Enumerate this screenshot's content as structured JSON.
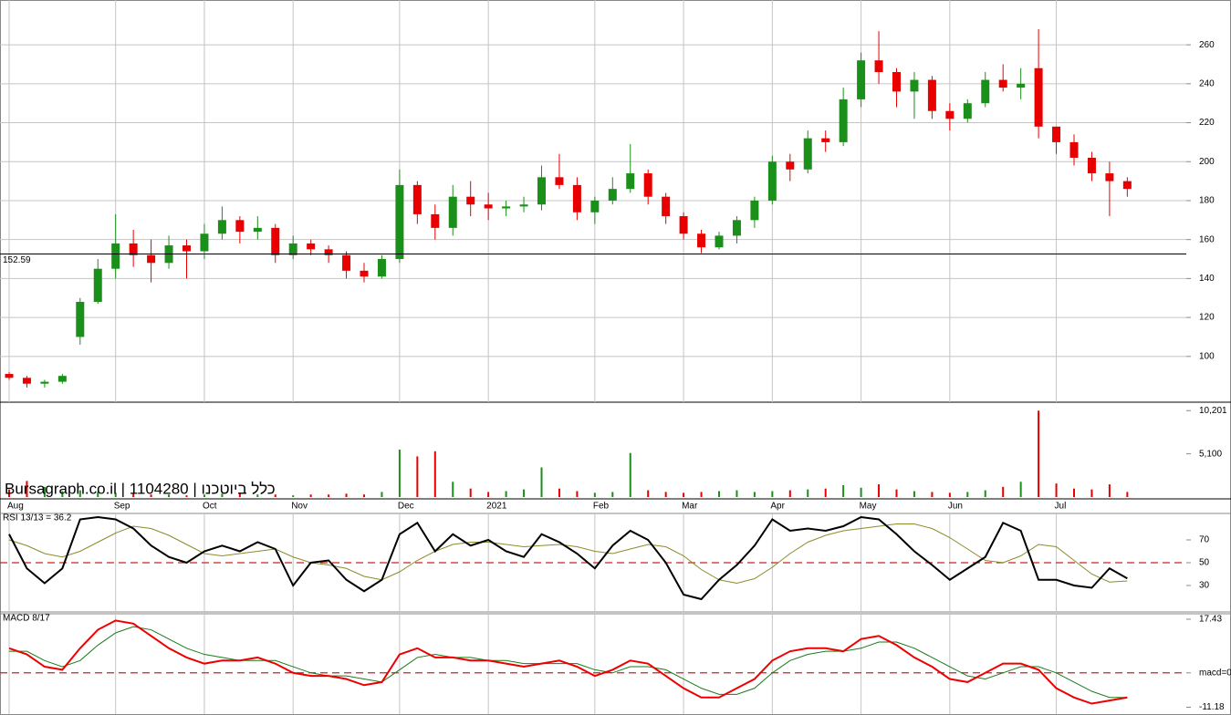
{
  "watermark": "Bursagraph.co.il | 1104280 | כלל ביוטכנו",
  "chart_data": [
    {
      "type": "candlestick",
      "categories": [
        "Aug",
        null,
        null,
        null,
        null,
        null,
        "Sep",
        null,
        null,
        null,
        null,
        "Oct",
        null,
        null,
        null,
        null,
        "Nov",
        null,
        null,
        null,
        null,
        null,
        "Dec",
        null,
        null,
        null,
        null,
        "2021",
        null,
        null,
        null,
        null,
        null,
        "Feb",
        null,
        null,
        null,
        null,
        "Mar",
        null,
        null,
        null,
        null,
        "Apr",
        null,
        null,
        null,
        null,
        "May",
        null,
        null,
        null,
        null,
        "Jun",
        null,
        null,
        null,
        null,
        null,
        "Jul",
        null,
        null,
        null,
        null
      ],
      "open": [
        91,
        89,
        86,
        87,
        110,
        128,
        145,
        158,
        152,
        148,
        157,
        154,
        163,
        170,
        164,
        166,
        152,
        158,
        155,
        152,
        144,
        141,
        150,
        188,
        173,
        166,
        182,
        178,
        176,
        177,
        178,
        192,
        188,
        174,
        180,
        186,
        194,
        182,
        172,
        163,
        156,
        162,
        170,
        180,
        200,
        196,
        212,
        210,
        232,
        252,
        246,
        236,
        242,
        226,
        222,
        230,
        242,
        238,
        248,
        218,
        210,
        202,
        194,
        190
      ],
      "high": [
        92,
        90,
        88,
        91,
        130,
        150,
        173,
        165,
        160,
        162,
        160,
        168,
        177,
        172,
        172,
        168,
        162,
        160,
        157,
        154,
        148,
        152,
        196,
        190,
        178,
        188,
        190,
        184,
        180,
        182,
        198,
        204,
        192,
        182,
        192,
        209,
        196,
        184,
        174,
        165,
        164,
        172,
        182,
        203,
        204,
        216,
        216,
        238,
        256,
        267,
        248,
        246,
        244,
        230,
        232,
        246,
        250,
        248,
        268,
        218,
        214,
        205,
        200,
        192
      ],
      "low": [
        88,
        84,
        84,
        86,
        106,
        127,
        140,
        146,
        138,
        145,
        140,
        150,
        160,
        158,
        160,
        148,
        150,
        152,
        148,
        140,
        138,
        140,
        148,
        168,
        160,
        162,
        172,
        170,
        172,
        174,
        175,
        186,
        170,
        168,
        178,
        184,
        178,
        168,
        160,
        153,
        155,
        158,
        166,
        178,
        190,
        194,
        205,
        208,
        228,
        240,
        228,
        222,
        222,
        216,
        220,
        228,
        236,
        232,
        212,
        204,
        198,
        190,
        172,
        182
      ],
      "close": [
        89,
        86,
        87,
        90,
        128,
        145,
        158,
        152,
        148,
        157,
        154,
        163,
        170,
        164,
        166,
        152,
        158,
        155,
        152,
        144,
        141,
        150,
        188,
        173,
        166,
        182,
        178,
        176,
        177,
        178,
        192,
        188,
        174,
        180,
        186,
        194,
        182,
        172,
        163,
        156,
        162,
        170,
        180,
        200,
        196,
        212,
        210,
        232,
        252,
        246,
        236,
        242,
        226,
        222,
        230,
        242,
        238,
        240,
        218,
        210,
        202,
        194,
        190,
        186
      ],
      "up_color": "#1a8f1a",
      "down_color": "#e80000",
      "ylim": [
        76.5,
        283
      ],
      "yticks": [
        100,
        120,
        140,
        160,
        180,
        200,
        220,
        240,
        260
      ],
      "grid": true,
      "hline": 152.59
    },
    {
      "type": "bar",
      "values": [
        900,
        1900,
        1200,
        700,
        800,
        600,
        500,
        400,
        300,
        300,
        200,
        300,
        400,
        500,
        300,
        300,
        200,
        300,
        300,
        400,
        300,
        600,
        5600,
        4800,
        5400,
        1800,
        1000,
        600,
        700,
        900,
        3500,
        1000,
        700,
        500,
        600,
        5200,
        800,
        600,
        500,
        600,
        700,
        800,
        600,
        700,
        800,
        900,
        1000,
        1400,
        1100,
        1500,
        900,
        700,
        600,
        500,
        600,
        800,
        1200,
        1800,
        10201,
        1600,
        1000,
        900,
        1500,
        600
      ],
      "ylim": [
        0,
        11200
      ],
      "yticks": [
        {
          "value": 10201,
          "label": "10,201"
        },
        {
          "value": 5100,
          "label": "5,100"
        }
      ]
    },
    {
      "type": "line",
      "title": "RSI 13/13 = 36.2",
      "series": [
        {
          "color": "#000000",
          "values": [
            75,
            45,
            32,
            45,
            88,
            90,
            88,
            80,
            65,
            55,
            50,
            60,
            65,
            60,
            68,
            62,
            30,
            50,
            52,
            35,
            25,
            35,
            75,
            85,
            60,
            75,
            65,
            70,
            60,
            55,
            75,
            68,
            58,
            45,
            65,
            78,
            70,
            50,
            22,
            18,
            35,
            48,
            65,
            88,
            78,
            80,
            78,
            82,
            90,
            88,
            75,
            60,
            48,
            35,
            45,
            55,
            85,
            78,
            35,
            35,
            30,
            28,
            45,
            36.2
          ]
        },
        {
          "color": "#8b8b2a",
          "values": [
            70,
            65,
            58,
            55,
            60,
            68,
            76,
            82,
            80,
            74,
            66,
            58,
            56,
            58,
            60,
            62,
            55,
            50,
            48,
            45,
            38,
            35,
            42,
            52,
            60,
            66,
            68,
            68,
            66,
            64,
            65,
            66,
            64,
            60,
            58,
            62,
            66,
            64,
            56,
            44,
            35,
            32,
            36,
            46,
            58,
            68,
            74,
            78,
            80,
            82,
            84,
            84,
            80,
            72,
            62,
            52,
            50,
            56,
            66,
            64,
            52,
            40,
            33,
            34
          ]
        }
      ],
      "ylim": [
        7.6,
        93.2
      ],
      "yticks": [
        30,
        50,
        70
      ],
      "reference": 50
    },
    {
      "type": "line",
      "title": "MACD 8/17",
      "series": [
        {
          "color": "#ee0000",
          "values": [
            8,
            6,
            2,
            1,
            8,
            14,
            17,
            16,
            12,
            8,
            5,
            3,
            4,
            4,
            5,
            3,
            0,
            -1,
            -1,
            -2,
            -4,
            -3,
            6,
            8,
            5,
            5,
            4,
            4,
            3,
            2,
            3,
            4,
            2,
            -1,
            1,
            4,
            3,
            -1,
            -5,
            -8,
            -8,
            -5,
            -2,
            4,
            7,
            8,
            8,
            7,
            11,
            12,
            9,
            5,
            2,
            -2,
            -3,
            0,
            3,
            3,
            1,
            -5,
            -8,
            -10,
            -9,
            -8
          ]
        },
        {
          "color": "#1a7a1a",
          "values": [
            7,
            7,
            4,
            2,
            4,
            9,
            13,
            15,
            14,
            11,
            8,
            6,
            5,
            4,
            4,
            4,
            2,
            0,
            -1,
            -1,
            -2,
            -3,
            1,
            5,
            6,
            5,
            5,
            4,
            4,
            3,
            3,
            3,
            3,
            1,
            0,
            2,
            2,
            1,
            -2,
            -5,
            -7,
            -7,
            -5,
            0,
            4,
            6,
            7,
            7,
            8,
            10,
            10,
            8,
            5,
            2,
            -1,
            -2,
            0,
            2,
            2,
            0,
            -3,
            -6,
            -8,
            -8
          ]
        }
      ],
      "ylim": [
        -13.4,
        19.2
      ],
      "yticks": [
        17.43,
        {
          "value": 0,
          "label": "macd=0"
        },
        -11.18
      ],
      "reference": 0
    }
  ]
}
